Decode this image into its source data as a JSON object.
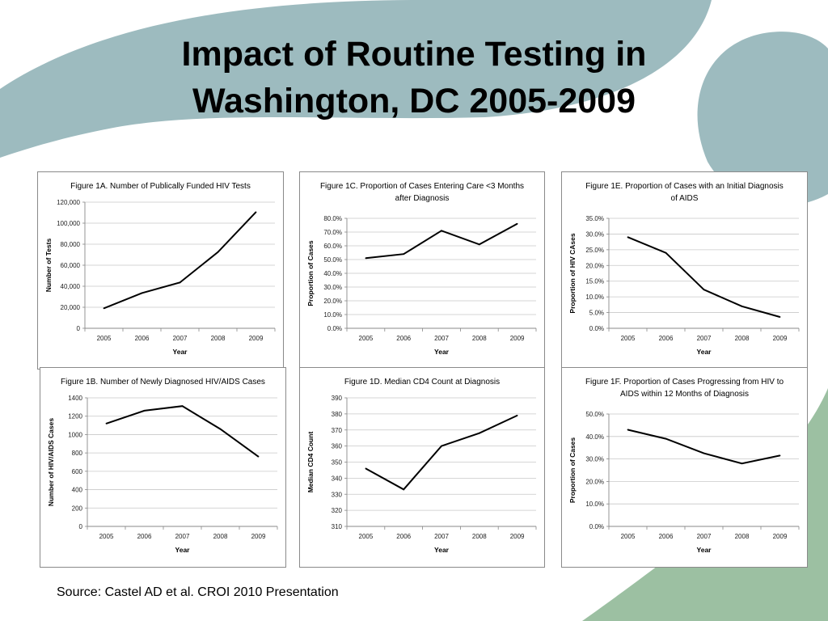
{
  "slide": {
    "title_line1": "Impact of Routine Testing in",
    "title_line2": "Washington, DC 2005-2009",
    "source": "Source: Castel AD et al. CROI 2010 Presentation"
  },
  "colors": {
    "background_top": "#9dbbbf",
    "background_bottom": "#9cc0a2",
    "line": "#000000",
    "gridline": "#c8c8c8"
  },
  "chart_data": [
    {
      "id": "1A",
      "type": "line",
      "title": [
        "Figure 1A. Number of Publically Funded HIV Tests"
      ],
      "xlabel": "Year",
      "ylabel": "Number of Tests",
      "categories": [
        "2005",
        "2006",
        "2007",
        "2008",
        "2009"
      ],
      "values": [
        19000,
        33500,
        43500,
        72500,
        110500
      ],
      "ylim": [
        0,
        120000
      ],
      "yticks": [
        0,
        20000,
        40000,
        60000,
        80000,
        100000,
        120000
      ],
      "ytick_labels": [
        "0",
        "20,000",
        "40,000",
        "60,000",
        "80,000",
        "100,000",
        "120,000"
      ],
      "grid": true,
      "legend": "none"
    },
    {
      "id": "1C",
      "type": "line",
      "title": [
        "Figure 1C. Proportion of Cases Entering Care <3 Months",
        "after Diagnosis"
      ],
      "xlabel": "Year",
      "ylabel": "Proportion of Cases",
      "categories": [
        "2005",
        "2006",
        "2007",
        "2008",
        "2009"
      ],
      "values": [
        51,
        54,
        71,
        61,
        76
      ],
      "ylim": [
        0,
        80
      ],
      "yticks": [
        0,
        10,
        20,
        30,
        40,
        50,
        60,
        70,
        80
      ],
      "ytick_labels": [
        "0.0%",
        "10.0%",
        "20.0%",
        "30.0%",
        "40.0%",
        "50.0%",
        "60.0%",
        "70.0%",
        "80.0%"
      ],
      "grid": true,
      "legend": "none"
    },
    {
      "id": "1E",
      "type": "line",
      "title": [
        "Figure 1E. Proportion of Cases with an Initial Diagnosis",
        "of AIDS"
      ],
      "xlabel": "Year",
      "ylabel": "Proportion of HIV CAses",
      "categories": [
        "2005",
        "2006",
        "2007",
        "2008",
        "2009"
      ],
      "values": [
        29,
        24,
        12.3,
        7,
        3.6
      ],
      "ylim": [
        0,
        35
      ],
      "yticks": [
        0,
        5,
        10,
        15,
        20,
        25,
        30,
        35
      ],
      "ytick_labels": [
        "0.0%",
        "5.0%",
        "10.0%",
        "15.0%",
        "20.0%",
        "25.0%",
        "30.0%",
        "35.0%"
      ],
      "grid": true,
      "legend": "none"
    },
    {
      "id": "1B",
      "type": "line",
      "title": [
        "Figure 1B. Number of Newly Diagnosed HIV/AIDS Cases"
      ],
      "xlabel": "Year",
      "ylabel": "Number of HIV/AIDS Cases",
      "categories": [
        "2005",
        "2006",
        "2007",
        "2008",
        "2009"
      ],
      "values": [
        1120,
        1260,
        1310,
        1060,
        760
      ],
      "ylim": [
        0,
        1400
      ],
      "yticks": [
        0,
        200,
        400,
        600,
        800,
        1000,
        1200,
        1400
      ],
      "ytick_labels": [
        "0",
        "200",
        "400",
        "600",
        "800",
        "1000",
        "1200",
        "1400"
      ],
      "grid": true,
      "legend": "none"
    },
    {
      "id": "1D",
      "type": "line",
      "title": [
        "Figure 1D. Median CD4 Count at Diagnosis"
      ],
      "xlabel": "Year",
      "ylabel": "Median CD4 Count",
      "categories": [
        "2005",
        "2006",
        "2007",
        "2008",
        "2009"
      ],
      "values": [
        346,
        333,
        360,
        368,
        379
      ],
      "ylim": [
        310,
        390
      ],
      "yticks": [
        310,
        320,
        330,
        340,
        350,
        360,
        370,
        380,
        390
      ],
      "ytick_labels": [
        "310",
        "320",
        "330",
        "340",
        "350",
        "360",
        "370",
        "380",
        "390"
      ],
      "grid": true,
      "legend": "none"
    },
    {
      "id": "1F",
      "type": "line",
      "title": [
        "Figure 1F. Proportion of Cases Progressing from HIV to",
        "AIDS within 12 Months of Diagnosis"
      ],
      "xlabel": "Year",
      "ylabel": "Proportion of Cases",
      "categories": [
        "2005",
        "2006",
        "2007",
        "2008",
        "2009"
      ],
      "values": [
        43,
        39,
        32.5,
        28,
        31.5
      ],
      "ylim": [
        0,
        50
      ],
      "yticks": [
        0,
        10,
        20,
        30,
        40,
        50
      ],
      "ytick_labels": [
        "0.0%",
        "10.0%",
        "20.0%",
        "30.0%",
        "40.0%",
        "50.0%"
      ],
      "grid": true,
      "legend": "none"
    }
  ]
}
